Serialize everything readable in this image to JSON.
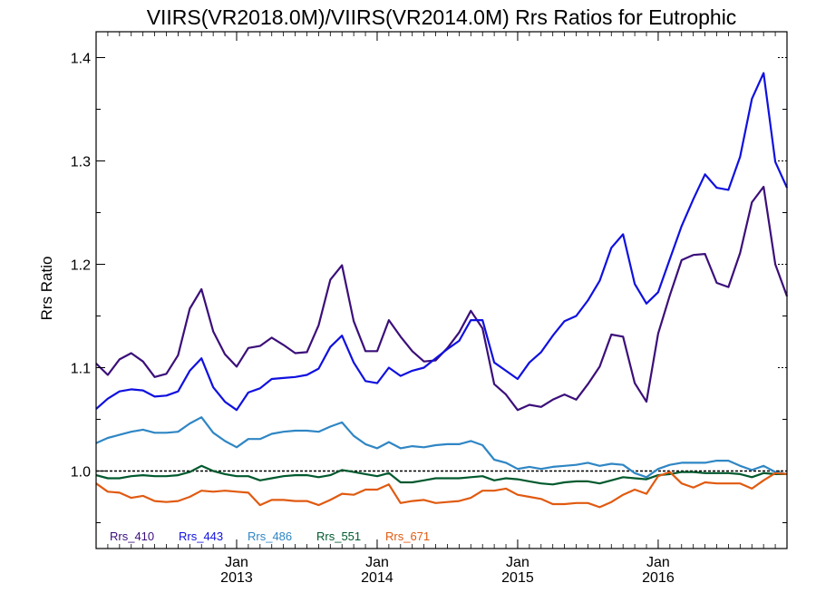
{
  "chart_data": {
    "type": "line",
    "title": "VIIRS(VR2018.0M)/VIIRS(VR2014.0M)  Rrs Ratios for Eutrophic",
    "ylabel": "Rrs Ratio",
    "xlabel": "",
    "xlim": [
      "2012-01",
      "2016-12"
    ],
    "ylim": [
      0.925,
      1.425
    ],
    "yticks": [
      1.0,
      1.1,
      1.2,
      1.3,
      1.4
    ],
    "ytick_labels": [
      "1.0",
      "1.1",
      "1.2",
      "1.3",
      "1.4"
    ],
    "xticks": [
      {
        "x": "2013-01",
        "month": "Jan",
        "year": "2013"
      },
      {
        "x": "2014-01",
        "month": "Jan",
        "year": "2014"
      },
      {
        "x": "2015-01",
        "month": "Jan",
        "year": "2015"
      },
      {
        "x": "2016-01",
        "month": "Jan",
        "year": "2016"
      }
    ],
    "reference_line": 1.0,
    "legend_position": "bottom-left",
    "x": [
      "2012-01",
      "2012-02",
      "2012-03",
      "2012-04",
      "2012-05",
      "2012-06",
      "2012-07",
      "2012-08",
      "2012-09",
      "2012-10",
      "2012-11",
      "2012-12",
      "2013-01",
      "2013-02",
      "2013-03",
      "2013-04",
      "2013-05",
      "2013-06",
      "2013-07",
      "2013-08",
      "2013-09",
      "2013-10",
      "2013-11",
      "2013-12",
      "2014-01",
      "2014-02",
      "2014-03",
      "2014-04",
      "2014-05",
      "2014-06",
      "2014-07",
      "2014-08",
      "2014-09",
      "2014-10",
      "2014-11",
      "2014-12",
      "2015-01",
      "2015-02",
      "2015-03",
      "2015-04",
      "2015-05",
      "2015-06",
      "2015-07",
      "2015-08",
      "2015-09",
      "2015-10",
      "2015-11",
      "2015-12",
      "2016-01",
      "2016-02",
      "2016-03",
      "2016-04",
      "2016-05",
      "2016-06",
      "2016-07",
      "2016-08",
      "2016-09",
      "2016-10",
      "2016-11",
      "2016-12"
    ],
    "series": [
      {
        "name": "Rrs_410",
        "color": "#3b0f7a",
        "values": [
          1.104,
          1.093,
          1.108,
          1.114,
          1.106,
          1.091,
          1.094,
          1.112,
          1.157,
          1.176,
          1.135,
          1.113,
          1.101,
          1.119,
          1.121,
          1.129,
          1.122,
          1.114,
          1.115,
          1.141,
          1.185,
          1.199,
          1.145,
          1.116,
          1.116,
          1.146,
          1.13,
          1.116,
          1.106,
          1.107,
          1.119,
          1.134,
          1.155,
          1.138,
          1.084,
          1.074,
          1.059,
          1.064,
          1.062,
          1.069,
          1.074,
          1.069,
          1.084,
          1.101,
          1.132,
          1.13,
          1.085,
          1.067,
          1.133,
          1.17,
          1.204,
          1.209,
          1.21,
          1.182,
          1.178,
          1.211,
          1.26,
          1.275,
          1.2,
          1.169
        ]
      },
      {
        "name": "Rrs_443",
        "color": "#1010e0",
        "values": [
          1.06,
          1.07,
          1.077,
          1.079,
          1.078,
          1.072,
          1.073,
          1.077,
          1.097,
          1.109,
          1.081,
          1.067,
          1.059,
          1.076,
          1.08,
          1.089,
          1.09,
          1.091,
          1.093,
          1.099,
          1.12,
          1.131,
          1.105,
          1.087,
          1.085,
          1.1,
          1.092,
          1.097,
          1.1,
          1.109,
          1.118,
          1.126,
          1.146,
          1.146,
          1.105,
          1.097,
          1.089,
          1.105,
          1.115,
          1.131,
          1.145,
          1.15,
          1.165,
          1.184,
          1.216,
          1.229,
          1.181,
          1.162,
          1.173,
          1.205,
          1.237,
          1.263,
          1.287,
          1.274,
          1.272,
          1.304,
          1.36,
          1.385,
          1.299,
          1.274
        ]
      },
      {
        "name": "Rrs_486",
        "color": "#2f86c4",
        "values": [
          1.027,
          1.032,
          1.035,
          1.038,
          1.04,
          1.037,
          1.037,
          1.038,
          1.046,
          1.052,
          1.037,
          1.029,
          1.023,
          1.031,
          1.031,
          1.036,
          1.038,
          1.039,
          1.039,
          1.038,
          1.043,
          1.047,
          1.034,
          1.026,
          1.022,
          1.028,
          1.022,
          1.024,
          1.023,
          1.025,
          1.026,
          1.026,
          1.029,
          1.025,
          1.011,
          1.008,
          1.002,
          1.004,
          1.002,
          1.004,
          1.005,
          1.006,
          1.008,
          1.005,
          1.007,
          1.006,
          0.998,
          0.994,
          1.002,
          1.006,
          1.008,
          1.008,
          1.008,
          1.01,
          1.01,
          1.005,
          1.001,
          1.005,
          0.999,
          0.997
        ]
      },
      {
        "name": "Rrs_551",
        "color": "#00592e",
        "values": [
          0.996,
          0.993,
          0.993,
          0.995,
          0.996,
          0.995,
          0.995,
          0.996,
          0.999,
          1.005,
          1.0,
          0.997,
          0.995,
          0.995,
          0.991,
          0.993,
          0.995,
          0.996,
          0.996,
          0.994,
          0.996,
          1.001,
          0.999,
          0.997,
          0.995,
          0.998,
          0.989,
          0.989,
          0.991,
          0.993,
          0.993,
          0.993,
          0.994,
          0.995,
          0.991,
          0.993,
          0.992,
          0.99,
          0.988,
          0.987,
          0.989,
          0.99,
          0.99,
          0.988,
          0.991,
          0.994,
          0.993,
          0.992,
          0.996,
          0.997,
          0.999,
          0.999,
          0.998,
          0.998,
          0.998,
          0.997,
          0.994,
          0.998,
          0.997,
          0.997
        ]
      },
      {
        "name": "Rrs_671",
        "color": "#e05a10",
        "values": [
          0.988,
          0.98,
          0.979,
          0.974,
          0.976,
          0.971,
          0.97,
          0.971,
          0.975,
          0.981,
          0.98,
          0.981,
          0.98,
          0.979,
          0.967,
          0.972,
          0.972,
          0.971,
          0.971,
          0.967,
          0.972,
          0.978,
          0.977,
          0.982,
          0.982,
          0.987,
          0.969,
          0.971,
          0.972,
          0.969,
          0.97,
          0.971,
          0.974,
          0.981,
          0.981,
          0.983,
          0.977,
          0.975,
          0.973,
          0.968,
          0.968,
          0.969,
          0.969,
          0.965,
          0.97,
          0.977,
          0.982,
          0.978,
          0.995,
          0.999,
          0.988,
          0.984,
          0.989,
          0.988,
          0.988,
          0.988,
          0.983,
          0.991,
          0.998,
          0.997
        ]
      }
    ]
  }
}
